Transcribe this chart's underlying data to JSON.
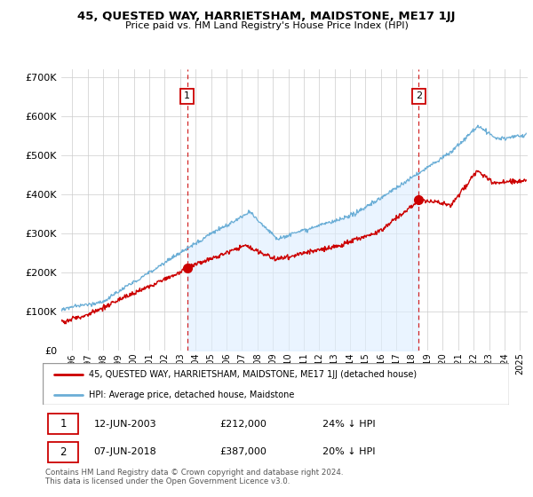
{
  "title": "45, QUESTED WAY, HARRIETSHAM, MAIDSTONE, ME17 1JJ",
  "subtitle": "Price paid vs. HM Land Registry's House Price Index (HPI)",
  "ylim": [
    0,
    720000
  ],
  "xlim_start": 1995.3,
  "xlim_end": 2025.5,
  "sale1_x": 2003.45,
  "sale1_y": 212000,
  "sale2_x": 2018.44,
  "sale2_y": 387000,
  "hpi_color": "#6baed6",
  "hpi_fill_color": "#ddeeff",
  "price_color": "#cc0000",
  "grid_color": "#cccccc",
  "background_color": "#ffffff",
  "legend_label_price": "45, QUESTED WAY, HARRIETSHAM, MAIDSTONE, ME17 1JJ (detached house)",
  "legend_label_hpi": "HPI: Average price, detached house, Maidstone",
  "table_row1": [
    "1",
    "12-JUN-2003",
    "£212,000",
    "24% ↓ HPI"
  ],
  "table_row2": [
    "2",
    "07-JUN-2018",
    "£387,000",
    "20% ↓ HPI"
  ],
  "footer": "Contains HM Land Registry data © Crown copyright and database right 2024.\nThis data is licensed under the Open Government Licence v3.0.",
  "marker_color_sale": "#cc0000",
  "marker_box_color": "#cc0000",
  "box_label_color": "#000000"
}
